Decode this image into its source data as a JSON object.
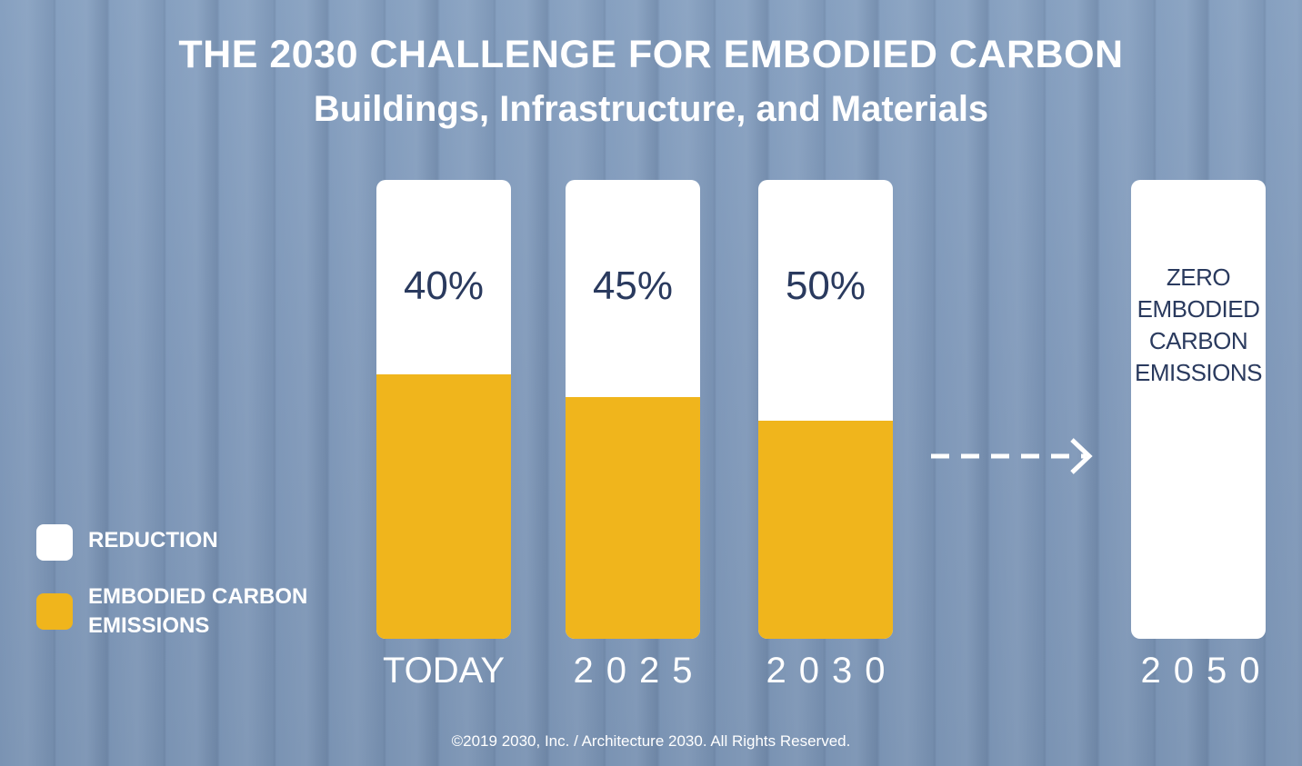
{
  "chart_data": {
    "type": "bar",
    "title": "THE 2030 CHALLENGE FOR EMBODIED CARBON",
    "subtitle": "Buildings, Infrastructure, and Materials",
    "categories": [
      "TODAY",
      "2025",
      "2030",
      "2050"
    ],
    "series": [
      {
        "name": "REDUCTION",
        "values": [
          40,
          45,
          50,
          100
        ],
        "labels": [
          "40%",
          "45%",
          "50%",
          "ZERO\nEMBODIED\nCARBON\nEMISSIONS"
        ]
      },
      {
        "name": "EMBODIED CARBON EMISSIONS",
        "values": [
          60,
          55,
          50,
          0
        ]
      }
    ],
    "ylim": [
      0,
      100
    ],
    "stacked": true,
    "legend": "bottom-left",
    "grid": false,
    "colors": {
      "REDUCTION": "#ffffff",
      "EMBODIED CARBON EMISSIONS": "#f0b51c",
      "label_text": "#2a3a5e"
    },
    "footer": "©2019  2030, Inc. / Architecture 2030. All Rights Reserved."
  }
}
